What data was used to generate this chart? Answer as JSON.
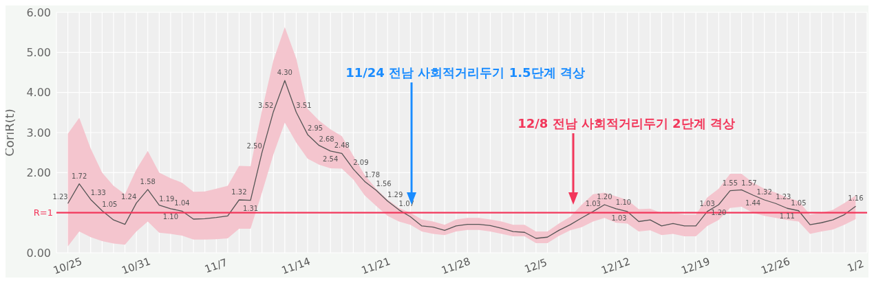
{
  "chart_data": {
    "type": "line",
    "ylabel": "CoriR(t)",
    "categories": [
      "10/25",
      null,
      null,
      null,
      null,
      null,
      "10/31",
      null,
      null,
      null,
      null,
      null,
      null,
      "11/7",
      null,
      null,
      null,
      null,
      null,
      null,
      "11/14",
      null,
      null,
      null,
      null,
      null,
      null,
      "11/21",
      null,
      null,
      null,
      null,
      null,
      null,
      "11/28",
      null,
      null,
      null,
      null,
      null,
      null,
      "12/5",
      null,
      null,
      null,
      null,
      null,
      null,
      "12/12",
      null,
      null,
      null,
      null,
      null,
      null,
      "12/19",
      null,
      null,
      null,
      null,
      null,
      null,
      "12/26",
      null,
      null,
      null,
      null,
      null,
      null,
      "1/2"
    ],
    "series": [
      {
        "color": "#555555",
        "values": [
          1.23,
          1.72,
          1.33,
          1.05,
          0.82,
          0.71,
          1.24,
          1.58,
          1.19,
          1.1,
          1.04,
          0.84,
          0.85,
          0.88,
          0.92,
          1.32,
          1.31,
          2.5,
          3.52,
          4.3,
          3.51,
          2.95,
          2.68,
          2.54,
          2.48,
          2.09,
          1.78,
          1.56,
          1.29,
          1.07,
          0.9,
          0.67,
          0.64,
          0.56,
          0.67,
          0.71,
          0.71,
          0.68,
          0.61,
          0.53,
          0.51,
          0.36,
          0.39,
          0.56,
          0.7,
          0.87,
          1.03,
          1.2,
          1.1,
          1.03,
          0.78,
          0.82,
          0.67,
          0.73,
          0.67,
          0.67,
          1.03,
          1.2,
          1.55,
          1.57,
          1.44,
          1.32,
          1.23,
          1.11,
          1.05,
          0.7,
          0.75,
          0.82,
          0.95,
          1.16
        ],
        "value_labels": [
          "1.23",
          "1.72",
          "1.33",
          "1.05",
          null,
          null,
          "1.24",
          "1.58",
          "1.19",
          "1.10",
          "1.04",
          null,
          null,
          null,
          null,
          "1.32",
          "1.31",
          "2.50",
          "3.52",
          "4.30",
          "3.51",
          "2.95",
          "2.68",
          "2.54",
          "2.48",
          "2.09",
          "1.78",
          "1.56",
          "1.29",
          "1.07",
          null,
          null,
          null,
          null,
          null,
          null,
          null,
          null,
          null,
          null,
          null,
          null,
          null,
          null,
          null,
          null,
          "1.03",
          "1.20",
          "1.10",
          "1.03",
          null,
          null,
          null,
          null,
          null,
          null,
          "1.03",
          "1.20",
          "1.55",
          "1.57",
          "1.44",
          "1.32",
          "1.23",
          "1.11",
          "1.05",
          null,
          null,
          null,
          null,
          "1.16"
        ],
        "lower": [
          0.16,
          0.53,
          0.39,
          0.29,
          0.23,
          0.2,
          0.53,
          0.78,
          0.5,
          0.47,
          0.43,
          0.33,
          0.33,
          0.34,
          0.36,
          0.6,
          0.6,
          1.5,
          2.45,
          3.25,
          2.75,
          2.35,
          2.2,
          2.11,
          2.1,
          1.83,
          1.43,
          1.17,
          0.92,
          0.78,
          0.7,
          0.53,
          0.47,
          0.44,
          0.53,
          0.57,
          0.57,
          0.53,
          0.47,
          0.41,
          0.41,
          0.24,
          0.24,
          0.42,
          0.56,
          0.64,
          0.78,
          0.87,
          0.75,
          0.73,
          0.53,
          0.56,
          0.44,
          0.47,
          0.41,
          0.41,
          0.67,
          0.82,
          1.12,
          1.15,
          1.0,
          0.92,
          0.87,
          0.82,
          0.78,
          0.47,
          0.53,
          0.58,
          0.7,
          0.84
        ],
        "upper": [
          2.97,
          3.37,
          2.6,
          2.0,
          1.67,
          1.46,
          2.08,
          2.54,
          2.0,
          1.86,
          1.75,
          1.52,
          1.53,
          1.6,
          1.67,
          2.17,
          2.16,
          3.55,
          4.8,
          5.63,
          4.85,
          3.59,
          3.3,
          3.08,
          2.91,
          2.42,
          1.94,
          1.6,
          1.33,
          1.12,
          1.0,
          0.83,
          0.78,
          0.7,
          0.83,
          0.87,
          0.87,
          0.83,
          0.78,
          0.7,
          0.7,
          0.53,
          0.53,
          0.73,
          0.9,
          1.2,
          1.46,
          1.5,
          1.41,
          1.32,
          1.09,
          1.1,
          0.99,
          1.0,
          0.95,
          0.95,
          1.38,
          1.6,
          1.97,
          1.97,
          1.75,
          1.6,
          1.5,
          1.38,
          1.29,
          0.95,
          1.0,
          1.07,
          1.24,
          1.43
        ]
      }
    ],
    "ylim": [
      0,
      6
    ],
    "yticks": [
      {
        "value": 0,
        "label": "0.00"
      },
      {
        "value": 1,
        "label": null
      },
      {
        "value": 2,
        "label": "2.00"
      },
      {
        "value": 3,
        "label": "3.00"
      },
      {
        "value": 4,
        "label": "4.00"
      },
      {
        "value": 5,
        "label": "5.00"
      },
      {
        "value": 6,
        "label": "6.00"
      }
    ],
    "ref_lines": [
      {
        "axis": "y",
        "value": 1,
        "label": "R=1",
        "color": "#f2365a"
      }
    ],
    "annotations": [
      "11/24 전남 사회적거리두기 1.5단계 격상",
      "12/8 전남 사회적거리두기 2단계 격상"
    ],
    "grid": true
  }
}
